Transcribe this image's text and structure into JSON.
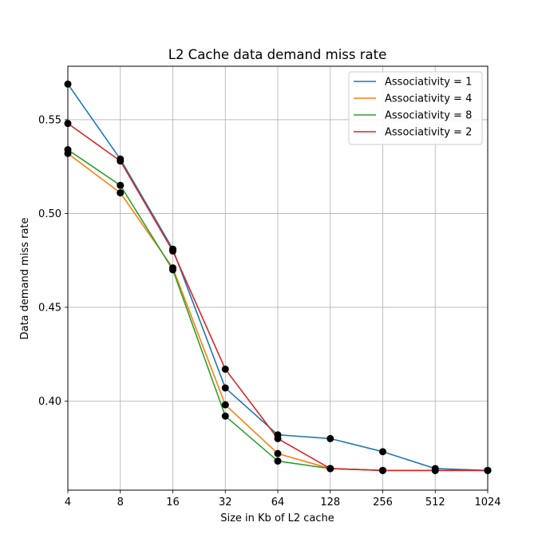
{
  "chart_data": {
    "type": "line",
    "title": "L2 Cache data demand miss rate",
    "xlabel": "Size in Kb of L2 cache",
    "ylabel": "Data demand miss rate",
    "x_scale": "log2",
    "x": [
      4,
      8,
      16,
      32,
      64,
      128,
      256,
      512,
      1024
    ],
    "x_tick_labels": [
      "4",
      "8",
      "16",
      "32",
      "64",
      "128",
      "256",
      "512",
      "1024"
    ],
    "y_ticks": [
      0.4,
      0.45,
      0.5,
      0.55
    ],
    "y_tick_labels": [
      "0.40",
      "0.45",
      "0.50",
      "0.55"
    ],
    "xlim": [
      4,
      1024
    ],
    "ylim": [
      0.3525,
      0.5785
    ],
    "grid": true,
    "legend_position": "top-right",
    "marker_color": "#000000",
    "series": [
      {
        "name": "Associativity = 1",
        "color": "#1f77b4",
        "values": [
          0.569,
          0.529,
          0.481,
          0.407,
          0.382,
          0.38,
          0.373,
          0.364,
          0.363
        ]
      },
      {
        "name": "Associativity = 4",
        "color": "#ff7f0e",
        "values": [
          0.532,
          0.511,
          0.471,
          0.398,
          0.372,
          0.364,
          0.363,
          0.363,
          0.363
        ]
      },
      {
        "name": "Associativity = 8",
        "color": "#2ca02c",
        "values": [
          0.534,
          0.515,
          0.47,
          0.392,
          0.368,
          0.364,
          0.363,
          0.363,
          0.363
        ]
      },
      {
        "name": "Associativity = 2",
        "color": "#d62728",
        "values": [
          0.548,
          0.528,
          0.48,
          0.417,
          0.38,
          0.364,
          0.363,
          0.363,
          0.363
        ]
      }
    ]
  }
}
